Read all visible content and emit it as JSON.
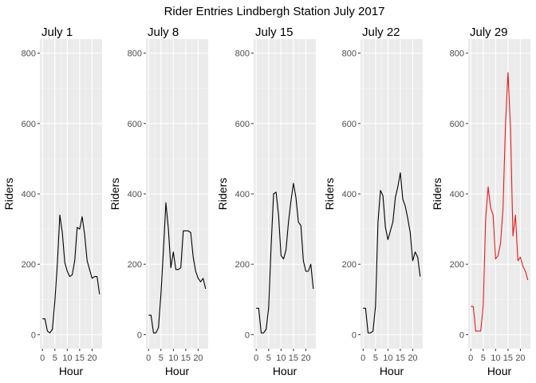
{
  "chart_data": {
    "type": "line",
    "title": "Rider Entries Lindbergh Station July 2017",
    "xlabel": "Hour",
    "ylabel": "Riders",
    "xlim": [
      0,
      23
    ],
    "ylim": [
      0,
      800
    ],
    "xticks": [
      0,
      5,
      10,
      15,
      20
    ],
    "yticks": [
      0,
      200,
      400,
      600,
      800
    ],
    "grid": true,
    "panels": [
      {
        "label": "July 1",
        "color": "#000000",
        "x": [
          0,
          1,
          2,
          3,
          4,
          5,
          6,
          7,
          8,
          9,
          10,
          11,
          12,
          13,
          14,
          15,
          16,
          17,
          18,
          19,
          20,
          21,
          22,
          23
        ],
        "y": [
          45,
          45,
          10,
          5,
          15,
          95,
          200,
          340,
          290,
          205,
          180,
          165,
          170,
          210,
          305,
          300,
          335,
          285,
          210,
          185,
          160,
          165,
          165,
          115
        ]
      },
      {
        "label": "July 8",
        "color": "#000000",
        "x": [
          0,
          1,
          2,
          3,
          4,
          5,
          6,
          7,
          8,
          9,
          10,
          11,
          12,
          13,
          14,
          15,
          16,
          17,
          18,
          19,
          20,
          21,
          22,
          23
        ],
        "y": [
          55,
          55,
          5,
          5,
          20,
          115,
          240,
          375,
          300,
          190,
          235,
          185,
          185,
          190,
          295,
          295,
          295,
          290,
          220,
          180,
          160,
          150,
          160,
          130
        ]
      },
      {
        "label": "July 15",
        "color": "#000000",
        "x": [
          0,
          1,
          2,
          3,
          4,
          5,
          6,
          7,
          8,
          9,
          10,
          11,
          12,
          13,
          14,
          15,
          16,
          17,
          18,
          19,
          20,
          21,
          22,
          23
        ],
        "y": [
          75,
          75,
          5,
          5,
          15,
          75,
          250,
          400,
          405,
          340,
          225,
          215,
          240,
          320,
          380,
          430,
          390,
          320,
          310,
          210,
          180,
          180,
          200,
          130
        ]
      },
      {
        "label": "July 22",
        "color": "#000000",
        "x": [
          0,
          1,
          2,
          3,
          4,
          5,
          6,
          7,
          8,
          9,
          10,
          11,
          12,
          13,
          14,
          15,
          16,
          17,
          18,
          19,
          20,
          21,
          22,
          23
        ],
        "y": [
          75,
          75,
          5,
          5,
          10,
          80,
          320,
          410,
          395,
          305,
          270,
          295,
          320,
          390,
          420,
          460,
          385,
          365,
          330,
          290,
          210,
          235,
          220,
          165
        ]
      },
      {
        "label": "July 29",
        "color": "#e41a1c",
        "x": [
          0,
          1,
          2,
          3,
          4,
          5,
          6,
          7,
          8,
          9,
          10,
          11,
          12,
          13,
          14,
          15,
          16,
          17,
          18,
          19,
          20,
          21,
          22,
          23
        ],
        "y": [
          80,
          80,
          10,
          10,
          10,
          80,
          330,
          420,
          360,
          340,
          215,
          225,
          260,
          360,
          600,
          745,
          590,
          280,
          340,
          210,
          220,
          195,
          180,
          155
        ]
      }
    ]
  }
}
